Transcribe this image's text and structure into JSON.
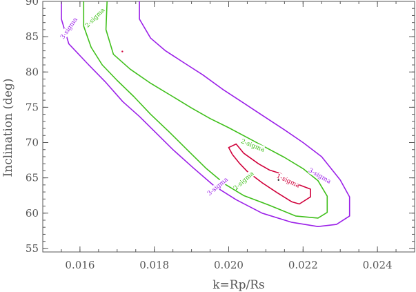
{
  "chart_data": {
    "type": "contour",
    "xlabel": "k=Rp/Rs",
    "ylabel": "Inclination (deg)",
    "xlim": [
      0.015,
      0.025
    ],
    "ylim": [
      54.5,
      90
    ],
    "x_ticks": [
      {
        "value": 0.016,
        "label": "0.016"
      },
      {
        "value": 0.018,
        "label": "0.018"
      },
      {
        "value": 0.02,
        "label": "0.020"
      },
      {
        "value": 0.022,
        "label": "0.022"
      },
      {
        "value": 0.024,
        "label": "0.024"
      }
    ],
    "y_ticks": [
      {
        "value": 55,
        "label": "55"
      },
      {
        "value": 60,
        "label": "60"
      },
      {
        "value": 65,
        "label": "65"
      },
      {
        "value": 70,
        "label": "70"
      },
      {
        "value": 75,
        "label": "75"
      },
      {
        "value": 80,
        "label": "80"
      },
      {
        "value": 85,
        "label": "85"
      },
      {
        "value": 90,
        "label": "90"
      }
    ],
    "grid": false,
    "series": [
      {
        "name": "1-sigma",
        "color": "#d0003a",
        "closed": true,
        "points": [
          [
            0.02,
            69.3
          ],
          [
            0.0202,
            69.8
          ],
          [
            0.0204,
            68.5
          ],
          [
            0.0208,
            67.0
          ],
          [
            0.0211,
            66.1
          ],
          [
            0.0214,
            65.6
          ],
          [
            0.0217,
            64.4
          ],
          [
            0.0222,
            63.4
          ],
          [
            0.0222,
            62.3
          ],
          [
            0.0219,
            61.3
          ],
          [
            0.0217,
            61.6
          ],
          [
            0.0213,
            62.9
          ],
          [
            0.0209,
            64.3
          ],
          [
            0.0205,
            65.9
          ],
          [
            0.0203,
            67.0
          ],
          [
            0.0201,
            68.3
          ]
        ],
        "labels": [
          {
            "text": "1-sigma",
            "x": 0.0216,
            "y": 64.6,
            "angle": 25
          }
        ]
      },
      {
        "name": "2-sigma",
        "color": "#3fbf1a",
        "closed": false,
        "points": [
          [
            0.01673,
            90
          ],
          [
            0.0167,
            86.0
          ],
          [
            0.0169,
            82.5
          ],
          [
            0.01735,
            80.4
          ],
          [
            0.0179,
            78.4
          ],
          [
            0.0185,
            76.5
          ],
          [
            0.019,
            74.9
          ],
          [
            0.0195,
            73.4
          ],
          [
            0.02,
            72.1
          ],
          [
            0.0205,
            70.7
          ],
          [
            0.021,
            69.3
          ],
          [
            0.0215,
            67.9
          ],
          [
            0.022,
            66.3
          ],
          [
            0.0224,
            64.6
          ],
          [
            0.02265,
            62.4
          ],
          [
            0.02265,
            60.1
          ],
          [
            0.0224,
            59.3
          ],
          [
            0.0218,
            59.6
          ],
          [
            0.0211,
            61.1
          ],
          [
            0.0204,
            62.5
          ],
          [
            0.0199,
            64.1
          ],
          [
            0.0194,
            66.3
          ],
          [
            0.0189,
            68.9
          ],
          [
            0.0184,
            71.5
          ],
          [
            0.0179,
            74.0
          ],
          [
            0.01745,
            76.5
          ],
          [
            0.017,
            78.8
          ],
          [
            0.0166,
            81.0
          ],
          [
            0.0163,
            83.5
          ],
          [
            0.0161,
            86.5
          ],
          [
            0.0161,
            90
          ]
        ],
        "labels": [
          {
            "text": "2-sigma",
            "x": 0.0164,
            "y": 87.7,
            "angle": -45
          },
          {
            "text": "2-sigma",
            "x": 0.02065,
            "y": 69.6,
            "angle": 22
          },
          {
            "text": "2-sigma",
            "x": 0.0204,
            "y": 64.6,
            "angle": -42
          }
        ]
      },
      {
        "name": "3-sigma",
        "color": "#9b1fe8",
        "closed": false,
        "points": [
          [
            0.0176,
            90
          ],
          [
            0.0176,
            87.5
          ],
          [
            0.0179,
            84.8
          ],
          [
            0.0183,
            83.0
          ],
          [
            0.0188,
            81.3
          ],
          [
            0.0193,
            79.6
          ],
          [
            0.01985,
            77.5
          ],
          [
            0.0204,
            75.6
          ],
          [
            0.02095,
            73.7
          ],
          [
            0.0215,
            71.8
          ],
          [
            0.022,
            70.0
          ],
          [
            0.0225,
            68.0
          ],
          [
            0.023,
            64.7
          ],
          [
            0.02325,
            62.3
          ],
          [
            0.02325,
            59.6
          ],
          [
            0.0229,
            58.4
          ],
          [
            0.0224,
            58.1
          ],
          [
            0.0217,
            58.7
          ],
          [
            0.0209,
            60.0
          ],
          [
            0.0202,
            61.9
          ],
          [
            0.0196,
            63.9
          ],
          [
            0.01905,
            66.4
          ],
          [
            0.0185,
            69.0
          ],
          [
            0.018,
            71.6
          ],
          [
            0.0176,
            73.7
          ],
          [
            0.01715,
            75.8
          ],
          [
            0.0167,
            78.5
          ],
          [
            0.0162,
            81.2
          ],
          [
            0.0157,
            84.0
          ],
          [
            0.0155,
            87.5
          ],
          [
            0.0155,
            90
          ]
        ],
        "labels": [
          {
            "text": "3-sigma",
            "x": 0.0157,
            "y": 86.2,
            "angle": -55
          },
          {
            "text": "3-sigma",
            "x": 0.02245,
            "y": 65.3,
            "angle": 30
          },
          {
            "text": "3-sigma",
            "x": 0.0197,
            "y": 63.8,
            "angle": -40
          }
        ]
      }
    ],
    "markers": [
      {
        "name": "best-fit-point",
        "x": 0.02134,
        "y": 64.7,
        "color": "#111111"
      },
      {
        "name": "red-point",
        "x": 0.01714,
        "y": 82.9,
        "color": "#d0003a"
      }
    ]
  }
}
